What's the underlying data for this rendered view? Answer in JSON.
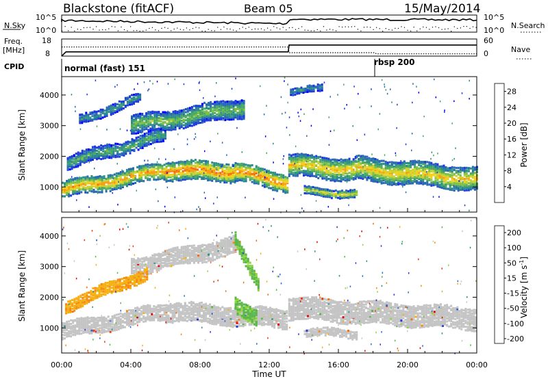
{
  "header": {
    "station": "Blackstone (fitACF)",
    "beam": "Beam 05",
    "date": "15/May/2014"
  },
  "top_panels": {
    "nsky_label": "N.Sky",
    "nsearch_label": "N.Search",
    "nsky_ticks": [
      "10^5",
      "10^0"
    ],
    "nsearch_ticks": [
      "10^5",
      "10^0"
    ],
    "freq_label": "Freq.",
    "freq_unit": "[MHz]",
    "freq_ticks": [
      "18",
      "8"
    ],
    "nave_label": "Nave",
    "nave_ticks": [
      "60",
      "0"
    ],
    "cpid_label": "CPID",
    "cpid_segments": [
      {
        "label": "normal (fast) 151",
        "start_hour": 0,
        "end_hour": 18.1
      },
      {
        "label": "rbsp 200",
        "start_hour": 18.1,
        "end_hour": 24
      }
    ],
    "freq_series": {
      "hours": [
        0,
        0.25,
        13.1,
        13.15,
        24
      ],
      "mhz": [
        8,
        10.5,
        10.5,
        14.5,
        14.5
      ]
    },
    "nave_series": {
      "hours": [
        0,
        13.1,
        13.15,
        18.1,
        18.2,
        24
      ],
      "values": [
        32,
        32,
        12,
        12,
        8,
        8
      ]
    }
  },
  "colors": {
    "power_scale": [
      "#0000ff",
      "#1e3cdc",
      "#2a6ab4",
      "#2e8f8a",
      "#4aa862",
      "#7cc04a",
      "#c8d232",
      "#f0d21e",
      "#f5a014",
      "#f26e0e",
      "#eb3c0a",
      "#e10a0a"
    ],
    "velocity_scale": [
      "#2a3ad8",
      "#2e6bd6",
      "#2e8f8a",
      "#5ab84a",
      "#8fd43c",
      "#c8c8c8",
      "#c8c8c8",
      "#f5b014",
      "#f58a14",
      "#f26e0e",
      "#eb3c0a",
      "#e10a0a"
    ],
    "ground_scatter": "#c4c4c4"
  },
  "chart_data": [
    {
      "type": "heatmap",
      "name": "power",
      "ylabel": "Slant Range [km]",
      "xlabel": "",
      "xlim_hours": [
        0,
        24
      ],
      "ylim_km": [
        180,
        4600
      ],
      "yticks": [
        1000,
        2000,
        3000,
        4000
      ],
      "colorbar_label": "Power [dB]",
      "colorbar_ticks": [
        4,
        8,
        12,
        16,
        20,
        24,
        28
      ],
      "colorbar_range": [
        0,
        30
      ],
      "bands": [
        {
          "t0": 0.0,
          "t1": 6.0,
          "r_center": [
            900,
            1550
          ],
          "width": 520,
          "core": 22
        },
        {
          "t0": 6.0,
          "t1": 10.0,
          "r_center": [
            1550,
            1500
          ],
          "width": 620,
          "core": 24
        },
        {
          "t0": 10.0,
          "t1": 13.0,
          "r_center": [
            1500,
            1150
          ],
          "width": 580,
          "core": 24
        },
        {
          "t0": 13.1,
          "t1": 17.0,
          "r_center": [
            1700,
            1580
          ],
          "width": 700,
          "core": 20
        },
        {
          "t0": 17.0,
          "t1": 24.0,
          "r_center": [
            1600,
            1250
          ],
          "width": 720,
          "core": 20
        },
        {
          "t0": 0.3,
          "t1": 6.0,
          "r_center": [
            1800,
            2700
          ],
          "width": 420,
          "core": 12
        },
        {
          "t0": 4.0,
          "t1": 10.5,
          "r_center": [
            3000,
            3600
          ],
          "width": 600,
          "core": 14
        },
        {
          "t0": 1.0,
          "t1": 4.5,
          "r_center": [
            3200,
            3900
          ],
          "width": 300,
          "core": 10
        },
        {
          "t0": 13.2,
          "t1": 15.0,
          "r_center": [
            4150,
            4200
          ],
          "width": 220,
          "core": 10
        },
        {
          "t0": 14.0,
          "t1": 17.0,
          "r_center": [
            850,
            800
          ],
          "width": 240,
          "core": 18
        }
      ]
    },
    {
      "type": "heatmap",
      "name": "velocity",
      "ylabel": "Slant Range [km]",
      "xlabel": "Time UT",
      "xlim_hours": [
        0,
        24
      ],
      "ylim_km": [
        180,
        4600
      ],
      "yticks": [
        1000,
        2000,
        3000,
        4000
      ],
      "xtick_labels": [
        "00:00",
        "04:00",
        "08:00",
        "12:00",
        "16:00",
        "20:00",
        "00:00"
      ],
      "colorbar_label": "Velocity [m s^-1]",
      "colorbar_ticks": [
        200,
        100,
        50,
        15,
        -15,
        -50,
        -100,
        -200
      ],
      "bands": [
        {
          "t0": 0.0,
          "t1": 6.0,
          "r_center": [
            900,
            1550
          ],
          "width": 520,
          "kind": "ground"
        },
        {
          "t0": 6.0,
          "t1": 13.0,
          "r_center": [
            1550,
            1300
          ],
          "width": 620,
          "kind": "ground"
        },
        {
          "t0": 13.1,
          "t1": 24.0,
          "r_center": [
            1650,
            1300
          ],
          "width": 700,
          "kind": "ground"
        },
        {
          "t0": 4.0,
          "t1": 10.0,
          "r_center": [
            3000,
            3700
          ],
          "width": 560,
          "kind": "ground"
        },
        {
          "t0": 0.2,
          "t1": 5.0,
          "r_center": [
            1700,
            2800
          ],
          "width": 360,
          "kind": "neg"
        },
        {
          "t0": 10.0,
          "t1": 11.4,
          "r_center": [
            3900,
            2400
          ],
          "width": 420,
          "kind": "pos"
        },
        {
          "t0": 10.0,
          "t1": 11.3,
          "r_center": [
            1800,
            1300
          ],
          "width": 500,
          "kind": "pos"
        },
        {
          "t0": 14.0,
          "t1": 17.0,
          "r_center": [
            850,
            800
          ],
          "width": 240,
          "kind": "ground"
        }
      ]
    }
  ]
}
